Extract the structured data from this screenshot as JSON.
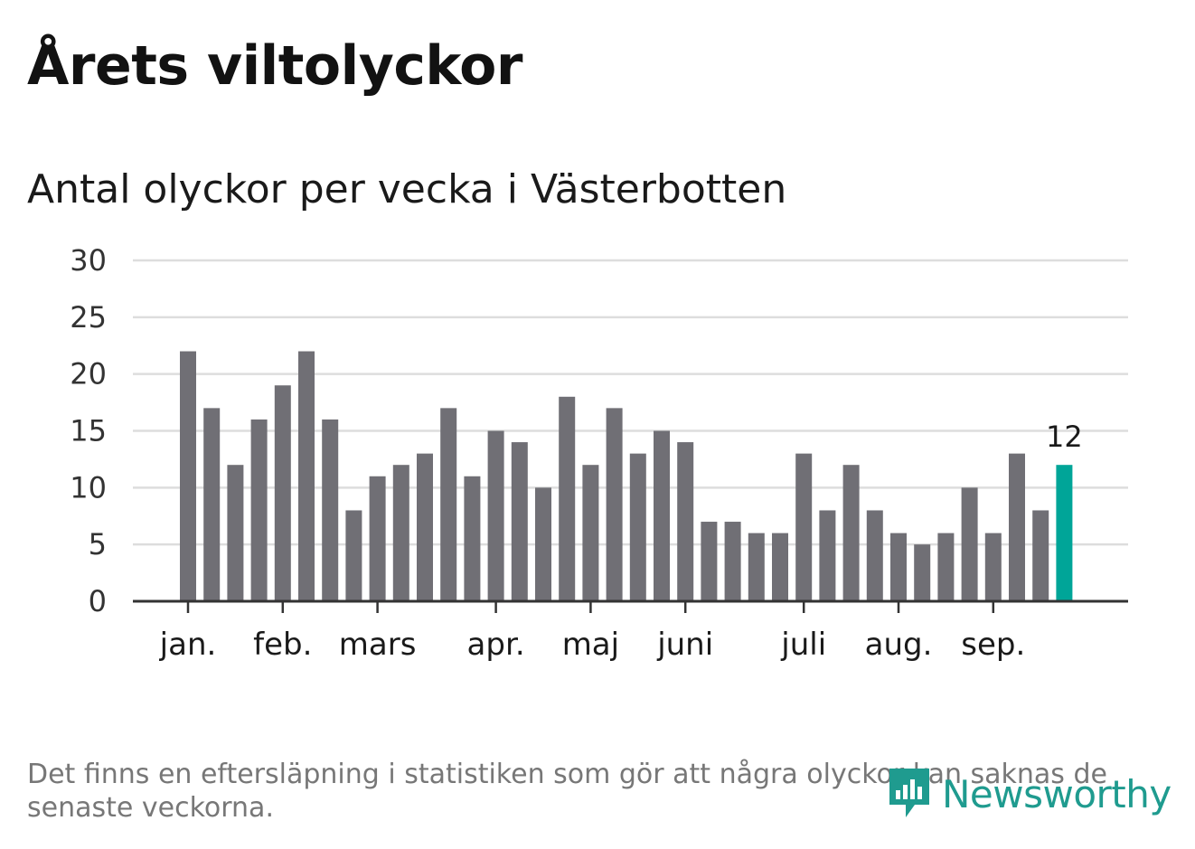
{
  "title": "Årets viltolyckor",
  "subtitle": "Antal olyckor per vecka i Västerbotten",
  "footnote": "Det finns en eftersläpning i statistiken som gör att några olyckor kan saknas de senaste veckorna.",
  "brand": {
    "name": "Newsworthy",
    "icon": "newsworthy-logo-icon",
    "color": "#1f9b8f"
  },
  "colors": {
    "bar": "#706f75",
    "highlight": "#00a598",
    "grid": "#dddddd",
    "axis": "#333333"
  },
  "chart_data": {
    "type": "bar",
    "title": "Antal olyckor per vecka i Västerbotten",
    "xlabel": "",
    "ylabel": "",
    "ylim": [
      0,
      30
    ],
    "yticks": [
      0,
      5,
      10,
      15,
      20,
      25,
      30
    ],
    "grid": true,
    "values": [
      22,
      17,
      12,
      16,
      19,
      22,
      16,
      8,
      11,
      12,
      13,
      17,
      11,
      15,
      14,
      10,
      18,
      12,
      17,
      13,
      15,
      14,
      7,
      7,
      6,
      6,
      13,
      8,
      12,
      8,
      6,
      5,
      6,
      10,
      6,
      13,
      8,
      12
    ],
    "highlight_index": 37,
    "highlight_label": "12",
    "month_labels": [
      {
        "label": "jan.",
        "bar_index": 0
      },
      {
        "label": "feb.",
        "bar_index": 4
      },
      {
        "label": "mars",
        "bar_index": 8
      },
      {
        "label": "apr.",
        "bar_index": 13
      },
      {
        "label": "maj",
        "bar_index": 17
      },
      {
        "label": "juni",
        "bar_index": 21
      },
      {
        "label": "juli",
        "bar_index": 26
      },
      {
        "label": "aug.",
        "bar_index": 30
      },
      {
        "label": "sep.",
        "bar_index": 34
      }
    ]
  }
}
